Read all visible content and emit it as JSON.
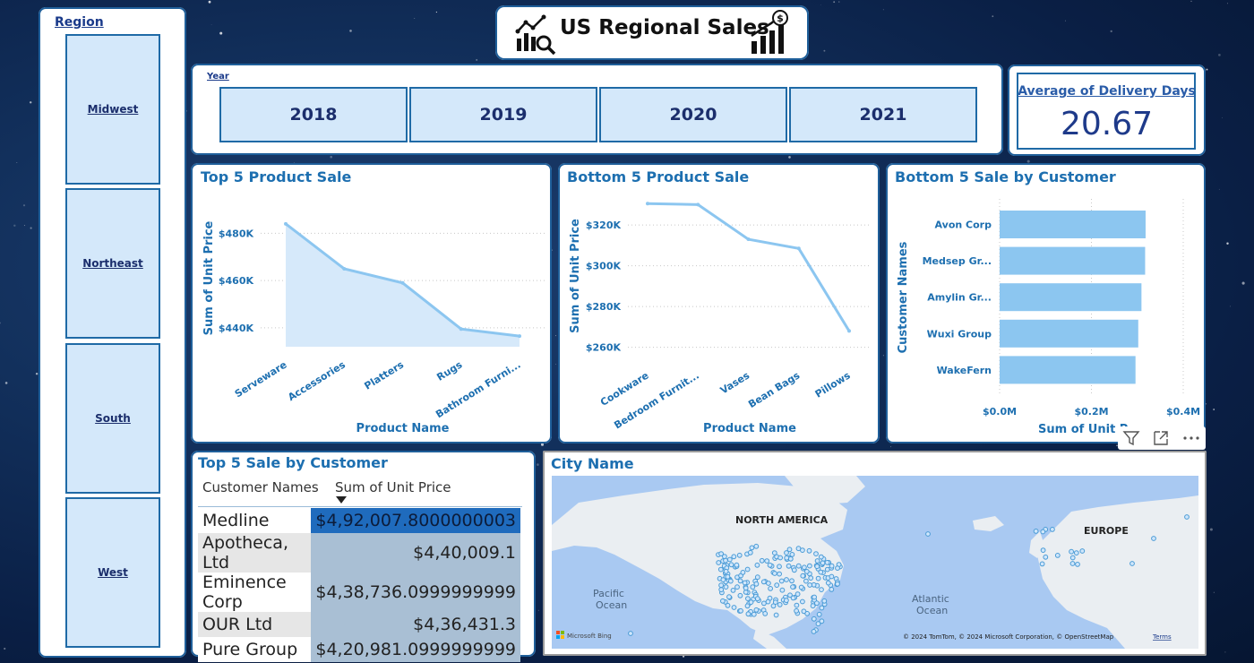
{
  "header": {
    "title": "US Regional Sales"
  },
  "region_slicer": {
    "label": "Region",
    "items": [
      "Midwest",
      "Northeast",
      "South",
      "West"
    ]
  },
  "year_slicer": {
    "label": "Year",
    "items": [
      "2018",
      "2019",
      "2020",
      "2021"
    ]
  },
  "kpi": {
    "label": "Average of Delivery Days",
    "value": "20.67"
  },
  "chart_data": [
    {
      "type": "area",
      "title": "Top 5 Product Sale",
      "xlabel": "Product Name",
      "ylabel": "Sum of Unit Price",
      "categories": [
        "Serveware",
        "Accessories",
        "Platters",
        "Rugs",
        "Bathroom Furni..."
      ],
      "values": [
        484000,
        465000,
        459000,
        439500,
        436500
      ],
      "yticks": [
        "$440K",
        "$460K",
        "$480K"
      ],
      "ytick_values": [
        440000,
        460000,
        480000
      ],
      "ylim": [
        432000,
        490000
      ]
    },
    {
      "type": "line",
      "title": "Bottom 5 Product Sale",
      "xlabel": "Product Name",
      "ylabel": "Sum of Unit Price",
      "categories": [
        "Cookware",
        "Bedroom Furnit...",
        "Vases",
        "Bean Bags",
        "Pillows"
      ],
      "values": [
        330500,
        330000,
        313000,
        308500,
        268000
      ],
      "yticks": [
        "$260K",
        "$280K",
        "$300K",
        "$320K"
      ],
      "ytick_values": [
        260000,
        280000,
        300000,
        320000
      ],
      "ylim": [
        255000,
        335000
      ]
    },
    {
      "type": "bar",
      "orientation": "horizontal",
      "title": "Bottom 5 Sale by Customer",
      "xlabel": "Sum of Unit P...",
      "ylabel": "Customer Names",
      "categories": [
        "Avon Corp",
        "Medsep Gr...",
        "Amylin Gr...",
        "Wuxi Group",
        "WakeFern"
      ],
      "values": [
        318000,
        317000,
        309000,
        302000,
        296000
      ],
      "xticks": [
        "$0.0M",
        "$0.2M",
        "$0.4M"
      ],
      "xtick_values": [
        0,
        200000,
        400000
      ],
      "xlim": [
        0,
        400000
      ]
    },
    {
      "type": "table",
      "title": "Top 5 Sale by Customer",
      "columns": [
        "Customer Names",
        "Sum of Unit Price"
      ],
      "rows": [
        [
          "Medline",
          "$4,92,007.8000000003"
        ],
        [
          "Apotheca, Ltd",
          "$4,40,009.1"
        ],
        [
          "Eminence Corp",
          "$4,38,736.0999999999"
        ],
        [
          "OUR Ltd",
          "$4,36,431.3"
        ],
        [
          "Pure Group",
          "$4,20,981.0999999999"
        ]
      ]
    }
  ],
  "map": {
    "title": "City Name",
    "labels": {
      "north_america": "NORTH AMERICA",
      "europe": "EUROPE",
      "pacific_1": "Pacific",
      "pacific_2": "Ocean",
      "atlantic_1": "Atlantic",
      "atlantic_2": "Ocean"
    },
    "attribution": "© 2024 TomTom, © 2024 Microsoft Corporation, © OpenStreetMap",
    "terms": "Terms",
    "bing": "Microsoft Bing",
    "colors": {
      "water": "#a9c9f2",
      "land": "#eaeef2",
      "dot": "#4a9bd6"
    }
  },
  "visual_toolbar": {
    "icons": [
      "filter-icon",
      "focus-mode-icon",
      "more-options-icon"
    ]
  },
  "colors": {
    "accent": "#1d6fb0",
    "bar": "#8cc6f0",
    "slicer_fill": "#d4e8fa",
    "border": "#1f5f9a"
  }
}
